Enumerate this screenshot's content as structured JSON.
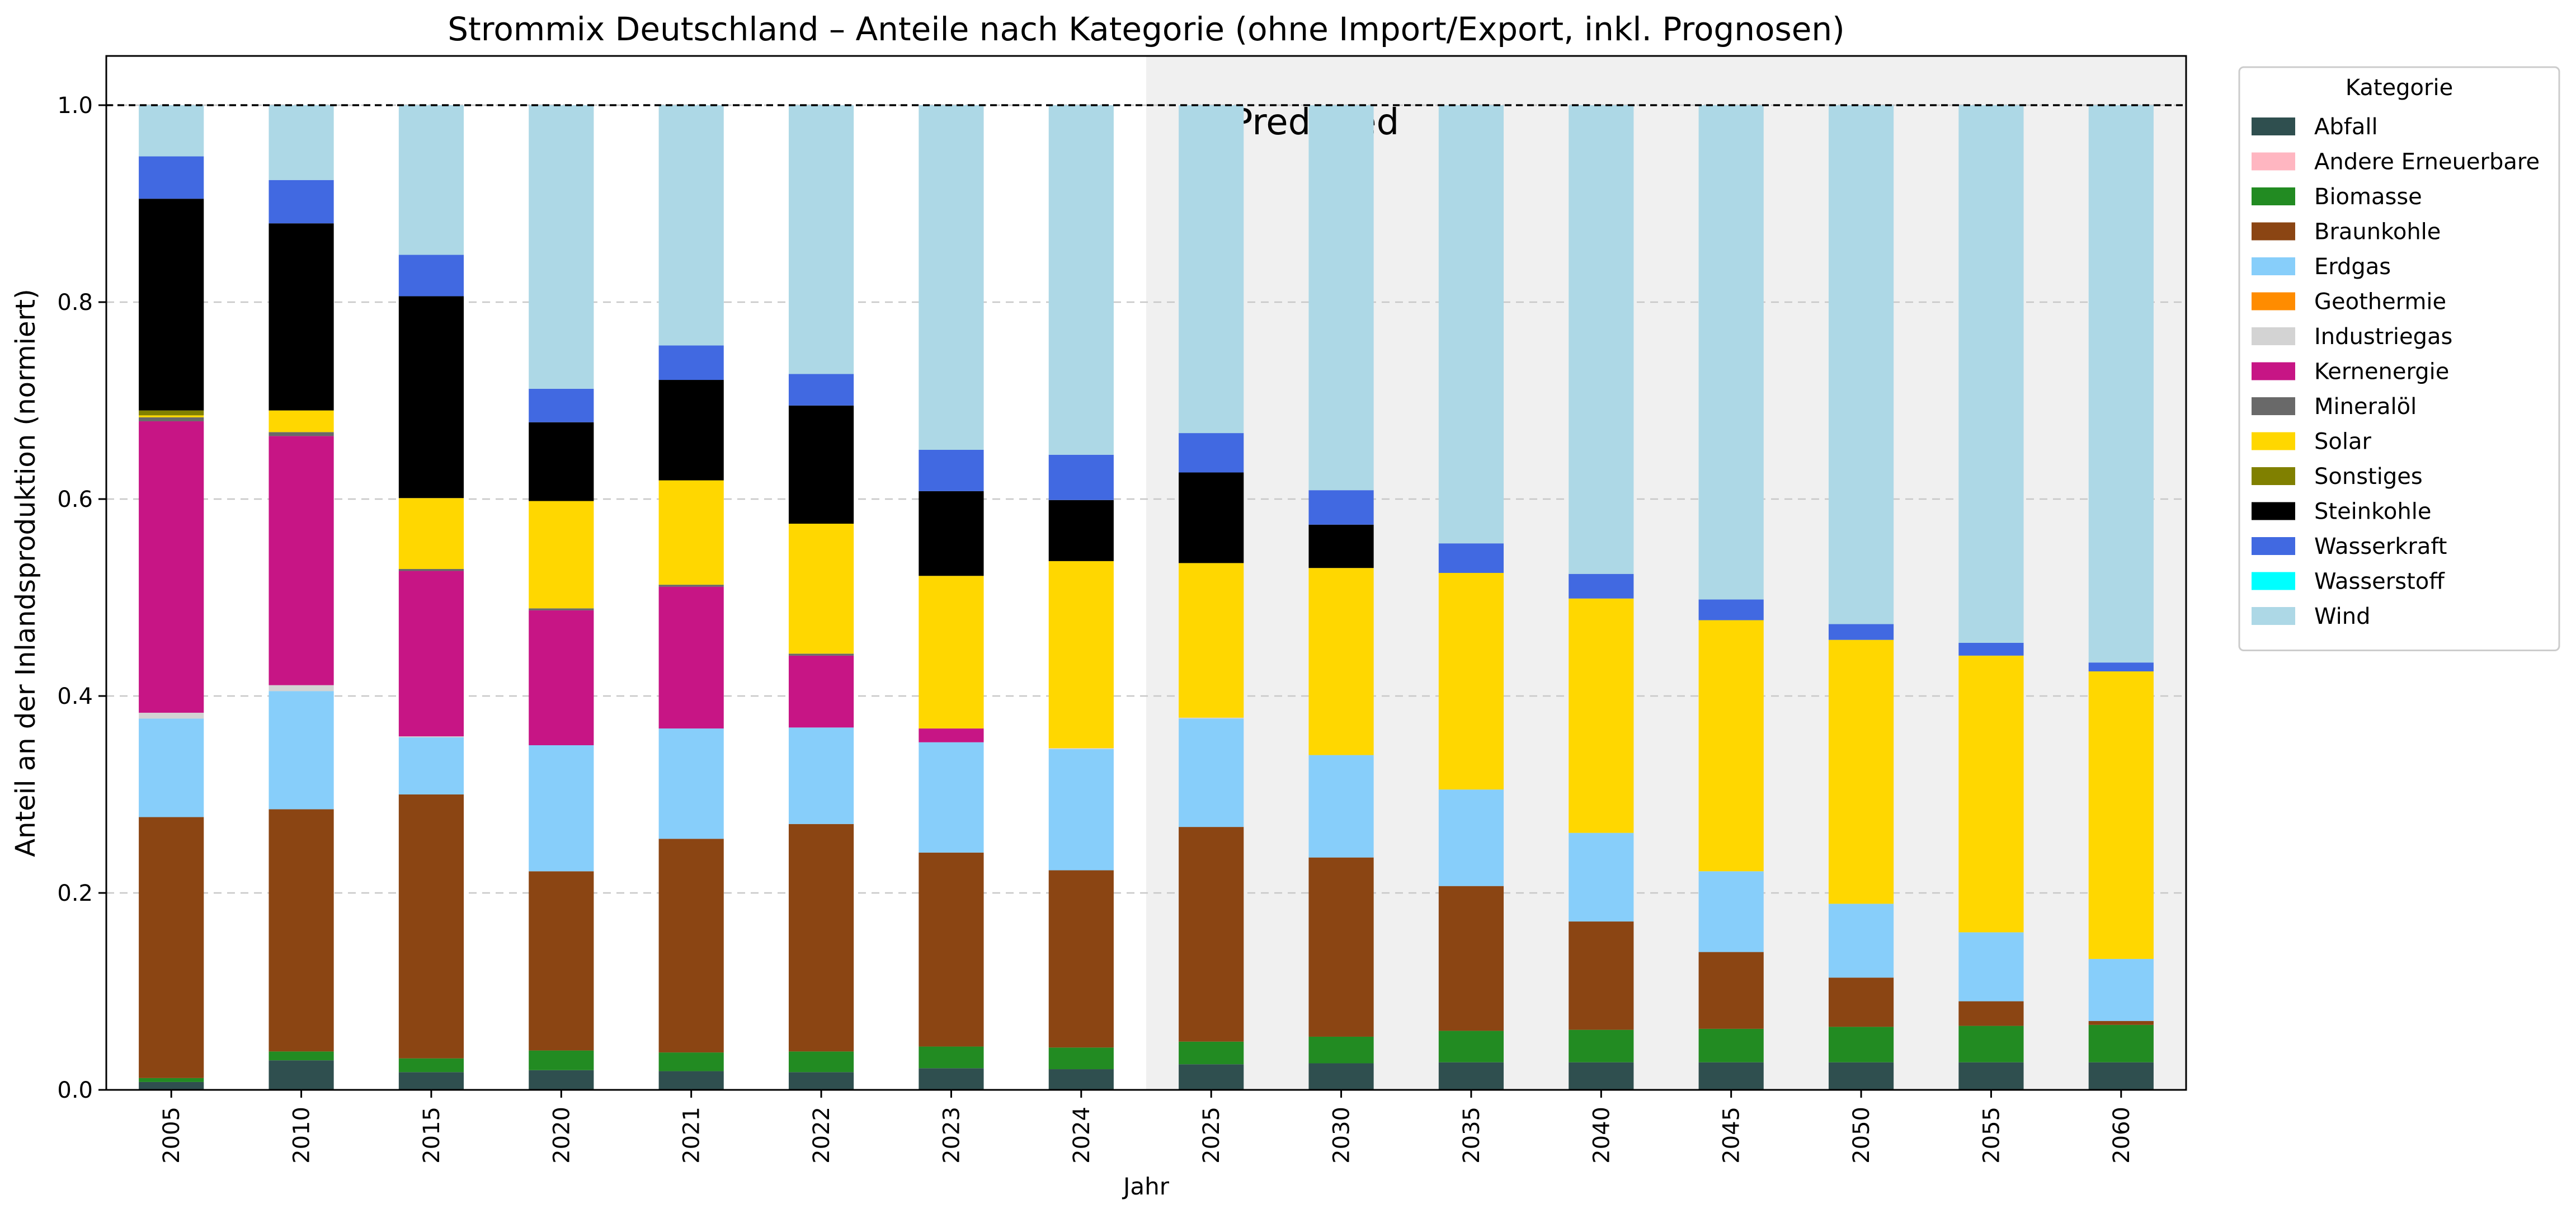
{
  "chart_data": {
    "type": "bar",
    "stacked": true,
    "title": "Strommix Deutschland – Anteile nach Kategorie (ohne Import/Export, inkl. Prognosen)",
    "xlabel": "Jahr",
    "ylabel": "Anteil an der Inlandsproduktion (normiert)",
    "ylim": [
      0,
      1.05
    ],
    "yticks": [
      "0.0",
      "0.2",
      "0.4",
      "0.6",
      "0.8",
      "1.0"
    ],
    "grid": "horizontal-dashed",
    "reference_line": 1.0,
    "categories": [
      "2005",
      "2010",
      "2015",
      "2020",
      "2021",
      "2022",
      "2023",
      "2024",
      "2025",
      "2030",
      "2035",
      "2040",
      "2045",
      "2050",
      "2055",
      "2060"
    ],
    "predicted_from_index": 8,
    "predicted_label": "Predicted",
    "legend": {
      "title": "Kategorie",
      "placement": "outside-right"
    },
    "series": [
      {
        "name": "Abfall",
        "color": "#2f4f4f",
        "values": [
          0.008,
          0.03,
          0.018,
          0.02,
          0.019,
          0.018,
          0.022,
          0.021,
          0.026,
          0.027,
          0.028,
          0.028,
          0.028,
          0.028,
          0.028,
          0.028
        ]
      },
      {
        "name": "Andere Erneuerbare",
        "color": "#ffb6c1",
        "values": [
          0.0,
          0.0,
          0.0,
          0.0,
          0.0,
          0.0,
          0.0,
          0.0,
          0.0,
          0.0,
          0.0,
          0.0,
          0.0,
          0.0,
          0.0,
          0.0
        ]
      },
      {
        "name": "Biomasse",
        "color": "#228b22",
        "values": [
          0.004,
          0.009,
          0.014,
          0.02,
          0.019,
          0.021,
          0.022,
          0.022,
          0.023,
          0.027,
          0.032,
          0.033,
          0.034,
          0.036,
          0.037,
          0.038
        ]
      },
      {
        "name": "Braunkohle",
        "color": "#8b4513",
        "values": [
          0.265,
          0.246,
          0.268,
          0.182,
          0.217,
          0.231,
          0.197,
          0.18,
          0.218,
          0.182,
          0.147,
          0.11,
          0.078,
          0.05,
          0.025,
          0.004
        ]
      },
      {
        "name": "Erdgas",
        "color": "#87cefa",
        "values": [
          0.1,
          0.12,
          0.058,
          0.128,
          0.112,
          0.098,
          0.112,
          0.123,
          0.11,
          0.104,
          0.098,
          0.09,
          0.082,
          0.075,
          0.07,
          0.063
        ]
      },
      {
        "name": "Geothermie",
        "color": "#ff8c00",
        "values": [
          0.0,
          0.0,
          0.0,
          0.0,
          0.0,
          0.0,
          0.0,
          0.0,
          0.0,
          0.0,
          0.0,
          0.0,
          0.0,
          0.0,
          0.0,
          0.0
        ]
      },
      {
        "name": "Industriegas",
        "color": "#d3d3d3",
        "values": [
          0.006,
          0.006,
          0.001,
          0.0,
          0.0,
          0.0,
          0.0,
          0.001,
          0.001,
          0.0,
          0.0,
          0.0,
          0.0,
          0.0,
          0.0,
          0.0
        ]
      },
      {
        "name": "Kernenergie",
        "color": "#c71585",
        "values": [
          0.296,
          0.253,
          0.168,
          0.137,
          0.144,
          0.073,
          0.014,
          0.0,
          0.0,
          0.0,
          0.0,
          0.0,
          0.0,
          0.0,
          0.0,
          0.0
        ]
      },
      {
        "name": "Mineralöl",
        "color": "#696969",
        "values": [
          0.004,
          0.004,
          0.002,
          0.002,
          0.002,
          0.002,
          0.0,
          0.0,
          0.0,
          0.0,
          0.0,
          0.0,
          0.0,
          0.0,
          0.0,
          0.0
        ]
      },
      {
        "name": "Solar",
        "color": "#ffd700",
        "values": [
          0.002,
          0.022,
          0.072,
          0.109,
          0.106,
          0.132,
          0.155,
          0.19,
          0.157,
          0.19,
          0.22,
          0.238,
          0.255,
          0.268,
          0.281,
          0.292
        ]
      },
      {
        "name": "Sonstiges",
        "color": "#808000",
        "values": [
          0.005,
          0.0,
          0.0,
          0.0,
          0.0,
          0.0,
          0.0,
          0.0,
          0.0,
          0.0,
          0.0,
          0.0,
          0.0,
          0.0,
          0.0,
          0.0
        ]
      },
      {
        "name": "Steinkohle",
        "color": "#000000",
        "values": [
          0.215,
          0.19,
          0.205,
          0.08,
          0.102,
          0.12,
          0.086,
          0.062,
          0.092,
          0.044,
          0.0,
          0.0,
          0.0,
          0.0,
          0.0,
          0.0
        ]
      },
      {
        "name": "Wasserkraft",
        "color": "#4169e1",
        "values": [
          0.043,
          0.044,
          0.042,
          0.034,
          0.035,
          0.032,
          0.042,
          0.046,
          0.04,
          0.035,
          0.03,
          0.025,
          0.021,
          0.016,
          0.013,
          0.009
        ]
      },
      {
        "name": "Wasserstoff",
        "color": "#00ffff",
        "values": [
          0.0,
          0.0,
          0.0,
          0.0,
          0.0,
          0.0,
          0.0,
          0.0,
          0.0,
          0.0,
          0.0,
          0.0,
          0.0,
          0.0,
          0.0,
          0.0
        ]
      },
      {
        "name": "Wind",
        "color": "#add8e6",
        "values": [
          0.052,
          0.076,
          0.152,
          0.288,
          0.244,
          0.273,
          0.35,
          0.355,
          0.333,
          0.391,
          0.445,
          0.476,
          0.502,
          0.527,
          0.546,
          0.566
        ]
      }
    ]
  }
}
